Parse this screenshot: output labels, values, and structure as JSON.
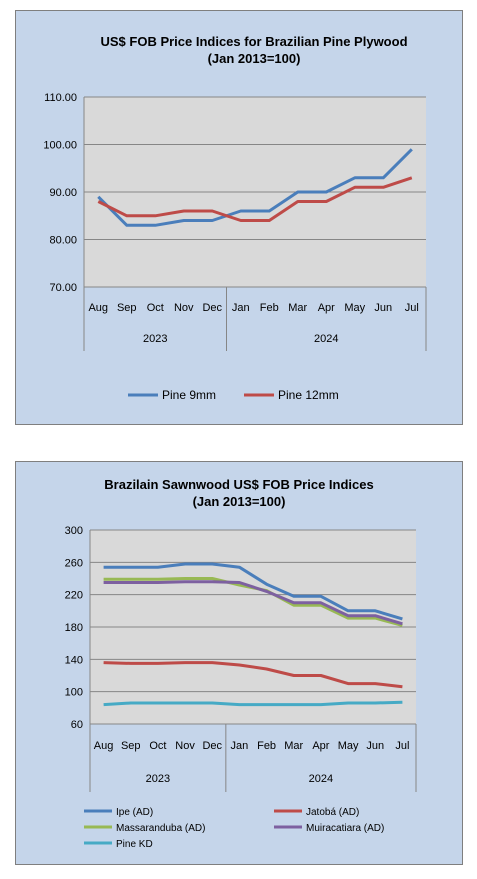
{
  "chart_data": [
    {
      "type": "line",
      "title": "US$ FOB Price Indices for Brazilian  Pine Plywood",
      "subtitle": "(Jan 2013=100)",
      "categories": [
        "Aug",
        "Sep",
        "Oct",
        "Nov",
        "Dec",
        "Jan",
        "Feb",
        "Mar",
        "Apr",
        "May",
        "Jun",
        "Jul"
      ],
      "year_groups": [
        {
          "label": "2023",
          "count": 5
        },
        {
          "label": "2024",
          "count": 7
        }
      ],
      "yticks": [
        "70.00",
        "80.00",
        "90.00",
        "100.00",
        "110.00"
      ],
      "ylim": [
        70,
        110
      ],
      "grid": true,
      "legend_position": "bottom",
      "series": [
        {
          "name": "Pine 9mm",
          "color": "#4a7ebb",
          "values": [
            89,
            83,
            83,
            84,
            84,
            86,
            86,
            90,
            90,
            93,
            93,
            99
          ]
        },
        {
          "name": "Pine 12mm",
          "color": "#be4b48",
          "values": [
            88,
            85,
            85,
            86,
            86,
            84,
            84,
            88,
            88,
            91,
            91,
            93
          ]
        }
      ]
    },
    {
      "type": "line",
      "title": "Brazilain Sawnwood US$ FOB Price Indices",
      "subtitle": "(Jan 2013=100)",
      "categories": [
        "Aug",
        "Sep",
        "Oct",
        "Nov",
        "Dec",
        "Jan",
        "Feb",
        "Mar",
        "Apr",
        "May",
        "Jun",
        "Jul"
      ],
      "year_groups": [
        {
          "label": "2023",
          "count": 5
        },
        {
          "label": "2024",
          "count": 7
        }
      ],
      "yticks": [
        "60",
        "100",
        "140",
        "180",
        "220",
        "260",
        "300"
      ],
      "ylim": [
        60,
        300
      ],
      "grid": true,
      "legend_position": "bottom",
      "series": [
        {
          "name": "Ipe (AD)",
          "color": "#4a7ebb",
          "values": [
            254,
            254,
            254,
            258,
            258,
            254,
            233,
            218,
            218,
            200,
            200,
            190
          ]
        },
        {
          "name": "Jatobá (AD)",
          "color": "#be4b48",
          "values": [
            136,
            135,
            135,
            136,
            136,
            133,
            128,
            120,
            120,
            110,
            110,
            106
          ]
        },
        {
          "name": "Massaranduba (AD)",
          "color": "#98b954",
          "values": [
            239,
            239,
            239,
            240,
            240,
            232,
            225,
            207,
            207,
            191,
            191,
            182
          ]
        },
        {
          "name": "Muiracatiara (AD)",
          "color": "#7d60a0",
          "values": [
            235,
            235,
            235,
            236,
            236,
            235,
            224,
            210,
            210,
            194,
            194,
            184
          ]
        },
        {
          "name": "Pine KD",
          "color": "#46aac5",
          "values": [
            84,
            86,
            86,
            86,
            86,
            84,
            84,
            84,
            84,
            86,
            86,
            87
          ]
        }
      ]
    }
  ]
}
